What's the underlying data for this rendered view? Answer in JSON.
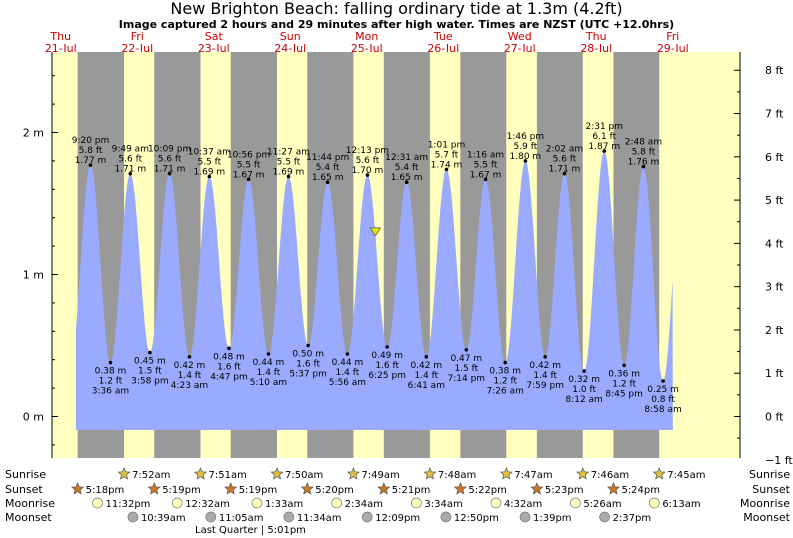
{
  "title": "New Brighton Beach: falling  ordinary tide at 1.3m (4.2ft)",
  "subtitle": "Image captured 2 hours and 29 minutes after high water. Times are NZST (UTC +12.0hrs)",
  "colors": {
    "day": "#ffffc0",
    "night": "#999999",
    "tide": "#99aaff",
    "day_label": "#cc0000",
    "marker": "#e8e800"
  },
  "days": [
    {
      "name": "Thu",
      "date": "21-Jul"
    },
    {
      "name": "Fri",
      "date": "22-Jul"
    },
    {
      "name": "Sat",
      "date": "23-Jul"
    },
    {
      "name": "Sun",
      "date": "24-Jul"
    },
    {
      "name": "Mon",
      "date": "25-Jul"
    },
    {
      "name": "Tue",
      "date": "26-Jul"
    },
    {
      "name": "Wed",
      "date": "27-Jul"
    },
    {
      "name": "Thu",
      "date": "28-Jul"
    },
    {
      "name": "Fri",
      "date": "29-Jul"
    }
  ],
  "chart_data": {
    "type": "area",
    "title": "New Brighton Beach: falling  ordinary tide at 1.3m (4.2ft)",
    "ylabel_left": "m",
    "ylabel_right": "ft",
    "x_range": [
      "2022-07-21T00:00",
      "2022-07-29T12:00"
    ],
    "y_range_m": [
      -0.3,
      2.55
    ],
    "y_ticks_left": [
      {
        "label": "0 m",
        "value": 0
      },
      {
        "label": "1 m",
        "value": 1
      },
      {
        "label": "2 m",
        "value": 2
      }
    ],
    "y_ticks_right": [
      {
        "label": "−1 ft",
        "value": -1
      },
      {
        "label": "0 ft",
        "value": 0
      },
      {
        "label": "1 ft",
        "value": 1
      },
      {
        "label": "2 ft",
        "value": 2
      },
      {
        "label": "3 ft",
        "value": 3
      },
      {
        "label": "4 ft",
        "value": 4
      },
      {
        "label": "5 ft",
        "value": 5
      },
      {
        "label": "6 ft",
        "value": 6
      },
      {
        "label": "7 ft",
        "value": 7
      },
      {
        "label": "8 ft",
        "value": 8
      }
    ],
    "current": {
      "datetime": "2022-07-25T14:42",
      "height_m": 1.3
    },
    "tides": [
      {
        "type": "high",
        "datetime": "2022-07-21T21:20",
        "time": "9:20 pm",
        "ft": "5.8 ft",
        "m": "1.77 m",
        "height_m": 1.77
      },
      {
        "type": "low",
        "datetime": "2022-07-22T03:36",
        "time": "3:36 am",
        "ft": "1.2 ft",
        "m": "0.38 m",
        "height_m": 0.38
      },
      {
        "type": "high",
        "datetime": "2022-07-22T09:49",
        "time": "9:49 am",
        "ft": "5.6 ft",
        "m": "1.71 m",
        "height_m": 1.71
      },
      {
        "type": "low",
        "datetime": "2022-07-22T15:58",
        "time": "3:58 pm",
        "ft": "1.5 ft",
        "m": "0.45 m",
        "height_m": 0.45
      },
      {
        "type": "high",
        "datetime": "2022-07-22T22:09",
        "time": "10:09 pm",
        "ft": "5.6 ft",
        "m": "1.71 m",
        "height_m": 1.71
      },
      {
        "type": "low",
        "datetime": "2022-07-23T04:23",
        "time": "4:23 am",
        "ft": "1.4 ft",
        "m": "0.42 m",
        "height_m": 0.42
      },
      {
        "type": "high",
        "datetime": "2022-07-23T10:37",
        "time": "10:37 am",
        "ft": "5.5 ft",
        "m": "1.69 m",
        "height_m": 1.69
      },
      {
        "type": "low",
        "datetime": "2022-07-23T16:47",
        "time": "4:47 pm",
        "ft": "1.6 ft",
        "m": "0.48 m",
        "height_m": 0.48
      },
      {
        "type": "high",
        "datetime": "2022-07-23T22:56",
        "time": "10:56 pm",
        "ft": "5.5 ft",
        "m": "1.67 m",
        "height_m": 1.67
      },
      {
        "type": "low",
        "datetime": "2022-07-24T05:10",
        "time": "5:10 am",
        "ft": "1.4 ft",
        "m": "0.44 m",
        "height_m": 0.44
      },
      {
        "type": "high",
        "datetime": "2022-07-24T11:27",
        "time": "11:27 am",
        "ft": "5.5 ft",
        "m": "1.69 m",
        "height_m": 1.69
      },
      {
        "type": "low",
        "datetime": "2022-07-24T17:37",
        "time": "5:37 pm",
        "ft": "1.6 ft",
        "m": "0.50 m",
        "height_m": 0.5
      },
      {
        "type": "high",
        "datetime": "2022-07-24T23:44",
        "time": "11:44 pm",
        "ft": "5.4 ft",
        "m": "1.65 m",
        "height_m": 1.65
      },
      {
        "type": "low",
        "datetime": "2022-07-25T05:56",
        "time": "5:56 am",
        "ft": "1.4 ft",
        "m": "0.44 m",
        "height_m": 0.44
      },
      {
        "type": "high",
        "datetime": "2022-07-25T12:13",
        "time": "12:13 pm",
        "ft": "5.6 ft",
        "m": "1.70 m",
        "height_m": 1.7
      },
      {
        "type": "low",
        "datetime": "2022-07-25T18:25",
        "time": "6:25 pm",
        "ft": "1.6 ft",
        "m": "0.49 m",
        "height_m": 0.49
      },
      {
        "type": "high",
        "datetime": "2022-07-26T00:31",
        "time": "12:31 am",
        "ft": "5.4 ft",
        "m": "1.65 m",
        "height_m": 1.65
      },
      {
        "type": "low",
        "datetime": "2022-07-26T06:41",
        "time": "6:41 am",
        "ft": "1.4 ft",
        "m": "0.42 m",
        "height_m": 0.42
      },
      {
        "type": "high",
        "datetime": "2022-07-26T13:01",
        "time": "1:01 pm",
        "ft": "5.7 ft",
        "m": "1.74 m",
        "height_m": 1.74
      },
      {
        "type": "low",
        "datetime": "2022-07-26T19:14",
        "time": "7:14 pm",
        "ft": "1.5 ft",
        "m": "0.47 m",
        "height_m": 0.47
      },
      {
        "type": "high",
        "datetime": "2022-07-27T01:16",
        "time": "1:16 am",
        "ft": "5.5 ft",
        "m": "1.67 m",
        "height_m": 1.67
      },
      {
        "type": "low",
        "datetime": "2022-07-27T07:26",
        "time": "7:26 am",
        "ft": "1.2 ft",
        "m": "0.38 m",
        "height_m": 0.38
      },
      {
        "type": "high",
        "datetime": "2022-07-27T13:46",
        "time": "1:46 pm",
        "ft": "5.9 ft",
        "m": "1.80 m",
        "height_m": 1.8
      },
      {
        "type": "low",
        "datetime": "2022-07-27T19:59",
        "time": "7:59 pm",
        "ft": "1.4 ft",
        "m": "0.42 m",
        "height_m": 0.42
      },
      {
        "type": "high",
        "datetime": "2022-07-28T02:02",
        "time": "2:02 am",
        "ft": "5.6 ft",
        "m": "1.71 m",
        "height_m": 1.71
      },
      {
        "type": "low",
        "datetime": "2022-07-28T08:12",
        "time": "8:12 am",
        "ft": "1.0 ft",
        "m": "0.32 m",
        "height_m": 0.32
      },
      {
        "type": "high",
        "datetime": "2022-07-28T14:31",
        "time": "2:31 pm",
        "ft": "6.1 ft",
        "m": "1.87 m",
        "height_m": 1.87
      },
      {
        "type": "low",
        "datetime": "2022-07-28T20:45",
        "time": "8:45 pm",
        "ft": "1.2 ft",
        "m": "0.36 m",
        "height_m": 0.36
      },
      {
        "type": "high",
        "datetime": "2022-07-29T02:48",
        "time": "2:48 am",
        "ft": "5.8 ft",
        "m": "1.76 m",
        "height_m": 1.76
      },
      {
        "type": "low",
        "datetime": "2022-07-29T08:58",
        "time": "8:58 am",
        "ft": "0.8 ft",
        "m": "0.25 m",
        "height_m": 0.25
      }
    ]
  },
  "almanac": {
    "labels": {
      "sunrise": "Sunrise",
      "sunset": "Sunset",
      "moonrise": "Moonrise",
      "moonset": "Moonset"
    },
    "sunrise": [
      {
        "datetime": "2022-07-22T07:52",
        "text": "7:52am"
      },
      {
        "datetime": "2022-07-23T07:51",
        "text": "7:51am"
      },
      {
        "datetime": "2022-07-24T07:50",
        "text": "7:50am"
      },
      {
        "datetime": "2022-07-25T07:49",
        "text": "7:49am"
      },
      {
        "datetime": "2022-07-26T07:48",
        "text": "7:48am"
      },
      {
        "datetime": "2022-07-27T07:47",
        "text": "7:47am"
      },
      {
        "datetime": "2022-07-28T07:46",
        "text": "7:46am"
      },
      {
        "datetime": "2022-07-29T07:45",
        "text": "7:45am"
      }
    ],
    "sunset": [
      {
        "datetime": "2022-07-21T17:18",
        "text": "5:18pm"
      },
      {
        "datetime": "2022-07-22T17:19",
        "text": "5:19pm"
      },
      {
        "datetime": "2022-07-23T17:19",
        "text": "5:19pm"
      },
      {
        "datetime": "2022-07-24T17:20",
        "text": "5:20pm"
      },
      {
        "datetime": "2022-07-25T17:21",
        "text": "5:21pm"
      },
      {
        "datetime": "2022-07-26T17:22",
        "text": "5:22pm"
      },
      {
        "datetime": "2022-07-27T17:23",
        "text": "5:23pm"
      },
      {
        "datetime": "2022-07-28T17:24",
        "text": "5:24pm"
      }
    ],
    "moonrise": [
      {
        "datetime": "2022-07-21T23:32",
        "text": "11:32pm"
      },
      {
        "datetime": "2022-07-23T00:32",
        "text": "12:32am"
      },
      {
        "datetime": "2022-07-24T01:33",
        "text": "1:33am"
      },
      {
        "datetime": "2022-07-25T02:34",
        "text": "2:34am"
      },
      {
        "datetime": "2022-07-26T03:34",
        "text": "3:34am"
      },
      {
        "datetime": "2022-07-27T04:32",
        "text": "4:32am"
      },
      {
        "datetime": "2022-07-28T05:26",
        "text": "5:26am"
      },
      {
        "datetime": "2022-07-29T06:13",
        "text": "6:13am"
      }
    ],
    "moonset": [
      {
        "datetime": "2022-07-22T10:39",
        "text": "10:39am"
      },
      {
        "datetime": "2022-07-23T11:05",
        "text": "11:05am"
      },
      {
        "datetime": "2022-07-24T11:34",
        "text": "11:34am"
      },
      {
        "datetime": "2022-07-25T12:09",
        "text": "12:09pm"
      },
      {
        "datetime": "2022-07-26T12:50",
        "text": "12:50pm"
      },
      {
        "datetime": "2022-07-27T13:39",
        "text": "1:39pm"
      },
      {
        "datetime": "2022-07-28T14:37",
        "text": "2:37pm"
      }
    ],
    "moon_phase": {
      "text": "Last Quarter | 5:01pm"
    }
  }
}
